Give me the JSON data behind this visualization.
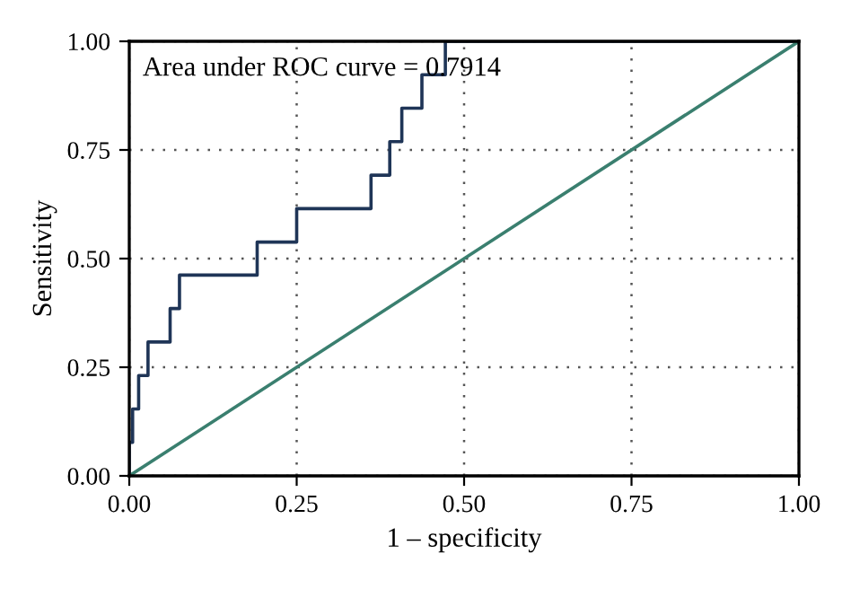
{
  "chart_data": {
    "type": "line",
    "xlabel": "1 – specificity",
    "ylabel": "Sensitivity",
    "annotations": [
      "Area under ROC curve = 0.7914"
    ],
    "series": [
      {
        "color": "#1f3557",
        "x": [
          0,
          0,
          0.005,
          0.005,
          0.014,
          0.014,
          0.028,
          0.028,
          0.061,
          0.061,
          0.075,
          0.075,
          0.191,
          0.191,
          0.25,
          0.25,
          0.361,
          0.361,
          0.389,
          0.389,
          0.407,
          0.407,
          0.437,
          0.437,
          0.472,
          0.472,
          1.0
        ],
        "values": [
          0,
          0.077,
          0.077,
          0.154,
          0.154,
          0.231,
          0.231,
          0.308,
          0.308,
          0.385,
          0.385,
          0.462,
          0.462,
          0.538,
          0.538,
          0.615,
          0.615,
          0.692,
          0.692,
          0.769,
          0.769,
          0.846,
          0.846,
          0.923,
          0.923,
          1.0,
          1.0
        ]
      },
      {
        "color": "#3a7f6f",
        "x": [
          0,
          1
        ],
        "values": [
          0,
          1
        ]
      }
    ],
    "xlim": [
      0,
      1
    ],
    "ylim": [
      0,
      1
    ],
    "xticks": [
      {
        "value": 0,
        "label": "0.00"
      },
      {
        "value": 0.25,
        "label": "0.25"
      },
      {
        "value": 0.5,
        "label": "0.50"
      },
      {
        "value": 0.75,
        "label": "0.75"
      },
      {
        "value": 1,
        "label": "1.00"
      }
    ],
    "yticks": [
      {
        "value": 0,
        "label": "0.00"
      },
      {
        "value": 0.25,
        "label": "0.25"
      },
      {
        "value": 0.5,
        "label": "0.50"
      },
      {
        "value": 0.75,
        "label": "0.75"
      },
      {
        "value": 1,
        "label": "1.00"
      }
    ],
    "grid": true,
    "line_style": "solid"
  }
}
